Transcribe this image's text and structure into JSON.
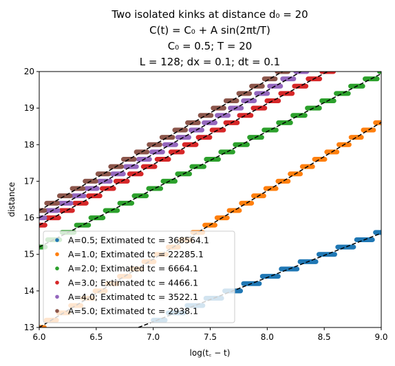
{
  "chart_data": {
    "type": "scatter",
    "title_lines": [
      "Two isolated kinks at distance d₀ = 20",
      "C(t) = C₀ + A sin(2πt/T)",
      "C₀ = 0.5; T = 20",
      "L = 128; dx = 0.1; dt = 0.1"
    ],
    "xlabel": "log(t꜀ − t)",
    "ylabel": "distance",
    "xlim": [
      6.0,
      9.0
    ],
    "ylim": [
      13,
      20
    ],
    "xticks": [
      "6.0",
      "6.5",
      "7.0",
      "7.5",
      "8.0",
      "8.5",
      "9.0"
    ],
    "yticks": [
      "13",
      "14",
      "15",
      "16",
      "17",
      "18",
      "19",
      "20"
    ],
    "step": 0.2,
    "legend_position": "lower-left",
    "series": [
      {
        "name": "A=0.5; Extimated tc = 368564.1",
        "color": "#1f77b4",
        "fit": {
          "x0": 6.87,
          "y0": 13.0,
          "slope": 1.21
        },
        "x_start": 7.0
      },
      {
        "name": "A=1.0; Extimated tc = 22285.1",
        "color": "#ff7f0e",
        "fit": {
          "x0": 6.0,
          "y0": 13.0,
          "slope": 1.87
        },
        "x_start": 6.0
      },
      {
        "name": "A=2.0; Extimated tc = 6664.1",
        "color": "#2ca02c",
        "fit": {
          "x0": 6.0,
          "y0": 15.2,
          "slope": 1.58
        },
        "x_start": 6.0
      },
      {
        "name": "A=3.0; Extimated tc = 4466.1",
        "color": "#d62728",
        "fit": {
          "x0": 6.0,
          "y0": 15.8,
          "slope": 1.66
        },
        "x_start": 6.0
      },
      {
        "name": "A=4.0; Extimated tc = 3522.1",
        "color": "#9467bd",
        "fit": {
          "x0": 6.0,
          "y0": 16.0,
          "slope": 1.74
        },
        "x_start": 6.0
      },
      {
        "name": "A=5.0; Extimated tc = 2938.1",
        "color": "#8c564b",
        "fit": {
          "x0": 6.0,
          "y0": 16.2,
          "slope": 1.78
        },
        "x_start": 6.0
      }
    ]
  }
}
